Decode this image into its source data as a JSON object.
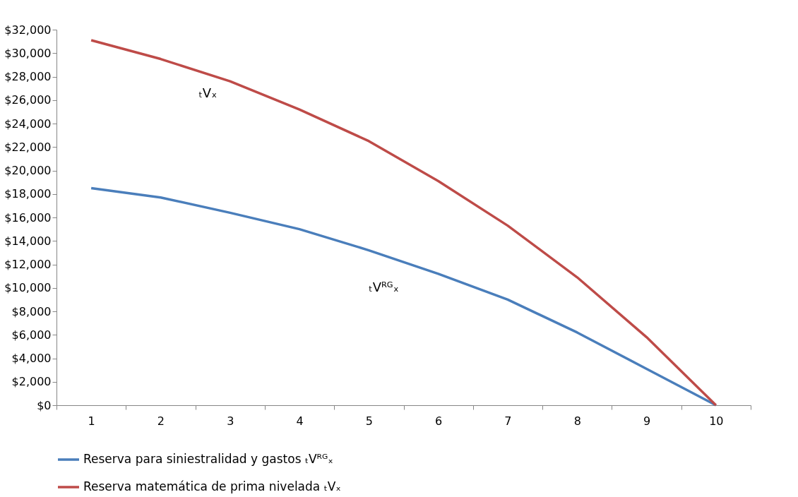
{
  "chart_data": {
    "type": "line",
    "categories": [
      "1",
      "2",
      "3",
      "4",
      "5",
      "6",
      "7",
      "8",
      "9",
      "10"
    ],
    "series": [
      {
        "name": "Reserva para siniestralidad y gastos      ₜVᴿᴳₓ",
        "color": "#4a7ebb",
        "values": [
          18500,
          17700,
          16400,
          15000,
          13200,
          11200,
          9000,
          6200,
          3100,
          0
        ]
      },
      {
        "name": "Reserva matemática de prima nivelada      ₜVₓ",
        "color": "#be4b48",
        "values": [
          31100,
          29500,
          27600,
          25200,
          22500,
          19100,
          15300,
          10900,
          5800,
          0
        ]
      }
    ],
    "ylim": [
      0,
      32000
    ],
    "yticks": [
      {
        "value": 0,
        "label": "$0"
      },
      {
        "value": 2000,
        "label": "$2,000"
      },
      {
        "value": 4000,
        "label": "$4,000"
      },
      {
        "value": 6000,
        "label": "$6,000"
      },
      {
        "value": 8000,
        "label": "$8,000"
      },
      {
        "value": 10000,
        "label": "$10,000"
      },
      {
        "value": 12000,
        "label": "$12,000"
      },
      {
        "value": 14000,
        "label": "$14,000"
      },
      {
        "value": 16000,
        "label": "$16,000"
      },
      {
        "value": 18000,
        "label": "$18,000"
      },
      {
        "value": 20000,
        "label": "$20,000"
      },
      {
        "value": 22000,
        "label": "$22,000"
      },
      {
        "value": 24000,
        "label": "$24,000"
      },
      {
        "value": 26000,
        "label": "$26,000"
      },
      {
        "value": 28000,
        "label": "$28,000"
      },
      {
        "value": 30000,
        "label": "$30,000"
      },
      {
        "value": 32000,
        "label": "$32,000"
      }
    ],
    "annotations": [
      "ₜVₓ",
      "ₜVᴿᴳₓ"
    ],
    "grid": false,
    "legend": "bottom",
    "marker": "none",
    "line_style": "solid"
  }
}
